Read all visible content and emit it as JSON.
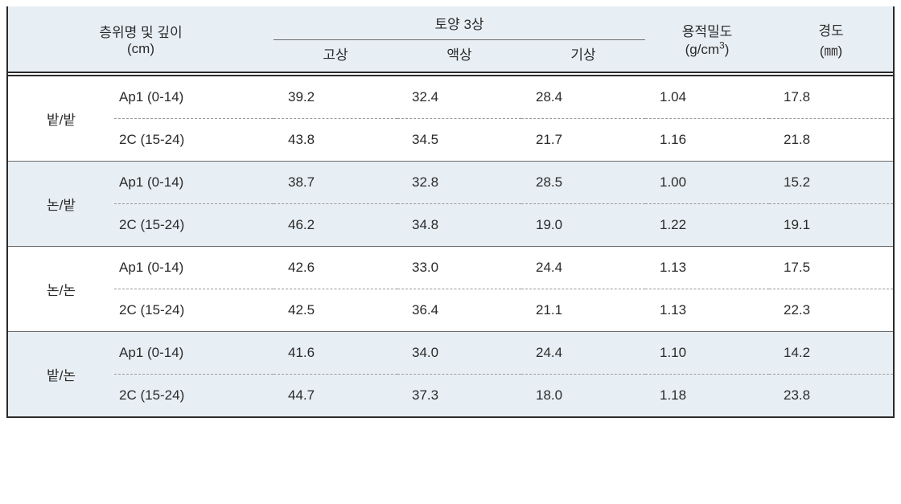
{
  "colors": {
    "header_bg": "#e8eff4",
    "text": "#2a2a2a",
    "border_outer": "#2a2a2a",
    "border_inner": "#6a6a6a",
    "dashed": "#9a9a9a",
    "white": "#ffffff"
  },
  "header": {
    "layer_label_line1": "층위명 및 깊이",
    "layer_label_line2": "(cm)",
    "soil3_label": "토양 3상",
    "soil3_cols": {
      "solid": "고상",
      "liquid": "액상",
      "gas": "기상"
    },
    "density_line1": "용적밀도",
    "density_line2_prefix": "(g/cm",
    "density_line2_sup": "3",
    "density_line2_suffix": ")",
    "hardness_line1": "경도",
    "hardness_line2": "(㎜)"
  },
  "groups": [
    {
      "label": "밭/밭",
      "shaded": false,
      "rows": [
        {
          "hz": "Ap1 (0-14)",
          "solid": "39.2",
          "liquid": "32.4",
          "gas": "28.4",
          "density": "1.04",
          "hardness": "17.8"
        },
        {
          "hz": "2C (15-24)",
          "solid": "43.8",
          "liquid": "34.5",
          "gas": "21.7",
          "density": "1.16",
          "hardness": "21.8"
        }
      ]
    },
    {
      "label": "논/밭",
      "shaded": true,
      "rows": [
        {
          "hz": "Ap1 (0-14)",
          "solid": "38.7",
          "liquid": "32.8",
          "gas": "28.5",
          "density": "1.00",
          "hardness": "15.2"
        },
        {
          "hz": "2C (15-24)",
          "solid": "46.2",
          "liquid": "34.8",
          "gas": "19.0",
          "density": "1.22",
          "hardness": "19.1"
        }
      ]
    },
    {
      "label": "논/논",
      "shaded": false,
      "rows": [
        {
          "hz": "Ap1 (0-14)",
          "solid": "42.6",
          "liquid": "33.0",
          "gas": "24.4",
          "density": "1.13",
          "hardness": "17.5"
        },
        {
          "hz": "2C (15-24)",
          "solid": "42.5",
          "liquid": "36.4",
          "gas": "21.1",
          "density": "1.13",
          "hardness": "22.3"
        }
      ]
    },
    {
      "label": "밭/논",
      "shaded": true,
      "rows": [
        {
          "hz": "Ap1 (0-14)",
          "solid": "41.6",
          "liquid": "34.0",
          "gas": "24.4",
          "density": "1.10",
          "hardness": "14.2"
        },
        {
          "hz": "2C (15-24)",
          "solid": "44.7",
          "liquid": "37.3",
          "gas": "18.0",
          "density": "1.18",
          "hardness": "23.8"
        }
      ]
    }
  ],
  "col_widths": {
    "group": "12%",
    "hz": "18%",
    "val": "14%"
  }
}
